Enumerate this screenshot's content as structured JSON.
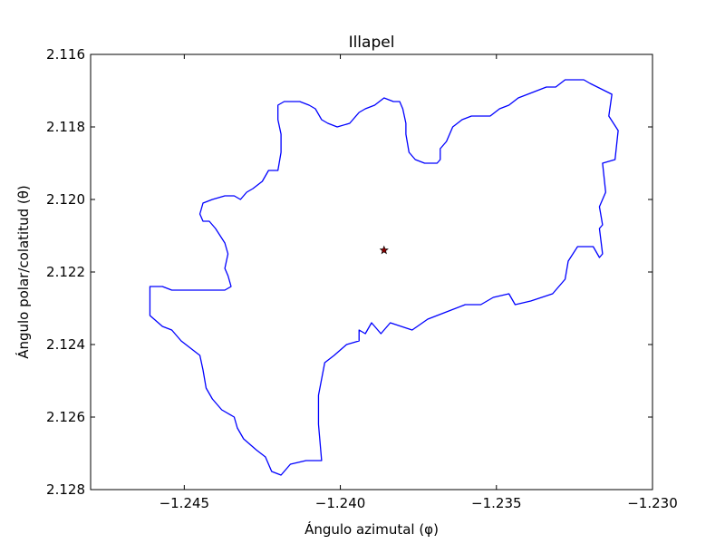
{
  "chart_data": {
    "type": "line",
    "title": "Illapel",
    "xlabel": "Ángulo azimutal (φ)",
    "ylabel": "Ángulo polar/colatitud (θ)",
    "xlim": [
      -1.248,
      -1.23
    ],
    "ylim": [
      2.128,
      2.116
    ],
    "y_axis_inverted": true,
    "grid": false,
    "x_ticks": [
      -1.245,
      -1.24,
      -1.235,
      -1.23
    ],
    "x_tick_labels": [
      "−1.245",
      "−1.240",
      "−1.235",
      "−1.230"
    ],
    "y_ticks": [
      2.116,
      2.118,
      2.12,
      2.122,
      2.124,
      2.126,
      2.128
    ],
    "y_tick_labels": [
      "2.116",
      "2.118",
      "2.120",
      "2.122",
      "2.124",
      "2.126",
      "2.128"
    ],
    "series": [
      {
        "kind": "boundary",
        "color": "#0000ff",
        "points": [
          [
            -1.232,
            2.1168
          ],
          [
            -1.2313,
            2.1171
          ],
          [
            -1.2314,
            2.1177
          ],
          [
            -1.2311,
            2.1181
          ],
          [
            -1.2312,
            2.1189
          ],
          [
            -1.2316,
            2.119
          ],
          [
            -1.2315,
            2.1198
          ],
          [
            -1.2317,
            2.1202
          ],
          [
            -1.2316,
            2.1207
          ],
          [
            -1.2317,
            2.1208
          ],
          [
            -1.2316,
            2.1215
          ],
          [
            -1.2317,
            2.1216
          ],
          [
            -1.2319,
            2.1213
          ],
          [
            -1.2324,
            2.1213
          ],
          [
            -1.2327,
            2.1217
          ],
          [
            -1.2328,
            2.1222
          ],
          [
            -1.2332,
            2.1226
          ],
          [
            -1.2339,
            2.1228
          ],
          [
            -1.2344,
            2.1229
          ],
          [
            -1.2346,
            2.1226
          ],
          [
            -1.2351,
            2.1227
          ],
          [
            -1.2355,
            2.1229
          ],
          [
            -1.236,
            2.1229
          ],
          [
            -1.2366,
            2.1231
          ],
          [
            -1.2372,
            2.1233
          ],
          [
            -1.2377,
            2.1236
          ],
          [
            -1.2384,
            2.1234
          ],
          [
            -1.2387,
            2.1237
          ],
          [
            -1.239,
            2.1234
          ],
          [
            -1.2392,
            2.1237
          ],
          [
            -1.2394,
            2.1236
          ],
          [
            -1.2394,
            2.1239
          ],
          [
            -1.2398,
            2.124
          ],
          [
            -1.2402,
            2.1243
          ],
          [
            -1.2405,
            2.1245
          ],
          [
            -1.2407,
            2.1254
          ],
          [
            -1.2407,
            2.1262
          ],
          [
            -1.2406,
            2.1272
          ],
          [
            -1.2411,
            2.1272
          ],
          [
            -1.2416,
            2.1273
          ],
          [
            -1.2419,
            2.1276
          ],
          [
            -1.2422,
            2.1275
          ],
          [
            -1.2424,
            2.1271
          ],
          [
            -1.2427,
            2.1269
          ],
          [
            -1.2431,
            2.1266
          ],
          [
            -1.2433,
            2.1263
          ],
          [
            -1.2434,
            2.126
          ],
          [
            -1.2438,
            2.1258
          ],
          [
            -1.2441,
            2.1255
          ],
          [
            -1.2443,
            2.1252
          ],
          [
            -1.2444,
            2.1247
          ],
          [
            -1.2445,
            2.1243
          ],
          [
            -1.2448,
            2.1241
          ],
          [
            -1.2451,
            2.1239
          ],
          [
            -1.2454,
            2.1236
          ],
          [
            -1.2457,
            2.1235
          ],
          [
            -1.2461,
            2.1232
          ],
          [
            -1.2461,
            2.1224
          ],
          [
            -1.2457,
            2.1224
          ],
          [
            -1.2454,
            2.1225
          ],
          [
            -1.245,
            2.1225
          ],
          [
            -1.2447,
            2.1225
          ],
          [
            -1.2443,
            2.1225
          ],
          [
            -1.244,
            2.1225
          ],
          [
            -1.2437,
            2.1225
          ],
          [
            -1.2435,
            2.1224
          ],
          [
            -1.2436,
            2.1221
          ],
          [
            -1.2437,
            2.1219
          ],
          [
            -1.2436,
            2.1215
          ],
          [
            -1.2437,
            2.1212
          ],
          [
            -1.244,
            2.1208
          ],
          [
            -1.2442,
            2.1206
          ],
          [
            -1.2444,
            2.1206
          ],
          [
            -1.2445,
            2.1204
          ],
          [
            -1.2444,
            2.1201
          ],
          [
            -1.2441,
            2.12
          ],
          [
            -1.2437,
            2.1199
          ],
          [
            -1.2434,
            2.1199
          ],
          [
            -1.2432,
            2.12
          ],
          [
            -1.243,
            2.1198
          ],
          [
            -1.2428,
            2.1197
          ],
          [
            -1.2425,
            2.1195
          ],
          [
            -1.2423,
            2.1192
          ],
          [
            -1.242,
            2.1192
          ],
          [
            -1.2419,
            2.1187
          ],
          [
            -1.2419,
            2.1182
          ],
          [
            -1.242,
            2.1178
          ],
          [
            -1.242,
            2.1174
          ],
          [
            -1.2418,
            2.1173
          ],
          [
            -1.2413,
            2.1173
          ],
          [
            -1.241,
            2.1174
          ],
          [
            -1.2408,
            2.1175
          ],
          [
            -1.2406,
            2.1178
          ],
          [
            -1.2404,
            2.1179
          ],
          [
            -1.2401,
            2.118
          ],
          [
            -1.2397,
            2.1179
          ],
          [
            -1.2394,
            2.1176
          ],
          [
            -1.2392,
            2.1175
          ],
          [
            -1.2389,
            2.1174
          ],
          [
            -1.2386,
            2.1172
          ],
          [
            -1.2383,
            2.1173
          ],
          [
            -1.2381,
            2.1173
          ],
          [
            -1.238,
            2.1175
          ],
          [
            -1.2379,
            2.1179
          ],
          [
            -1.2379,
            2.1182
          ],
          [
            -1.2378,
            2.1187
          ],
          [
            -1.2376,
            2.1189
          ],
          [
            -1.2373,
            2.119
          ],
          [
            -1.2371,
            2.119
          ],
          [
            -1.2369,
            2.119
          ],
          [
            -1.2368,
            2.1189
          ],
          [
            -1.2368,
            2.1186
          ],
          [
            -1.2366,
            2.1184
          ],
          [
            -1.2365,
            2.1182
          ],
          [
            -1.2364,
            2.118
          ],
          [
            -1.2361,
            2.1178
          ],
          [
            -1.2358,
            2.1177
          ],
          [
            -1.2355,
            2.1177
          ],
          [
            -1.2352,
            2.1177
          ],
          [
            -1.2349,
            2.1175
          ],
          [
            -1.2346,
            2.1174
          ],
          [
            -1.2343,
            2.1172
          ],
          [
            -1.234,
            2.1171
          ],
          [
            -1.2337,
            2.117
          ],
          [
            -1.2334,
            2.1169
          ],
          [
            -1.2331,
            2.1169
          ],
          [
            -1.2328,
            2.1167
          ],
          [
            -1.2325,
            2.1167
          ],
          [
            -1.2322,
            2.1167
          ],
          [
            -1.232,
            2.1168
          ]
        ]
      },
      {
        "kind": "marker",
        "marker": "star",
        "color": "#8b0000",
        "points": [
          [
            -1.2386,
            2.1214
          ]
        ]
      }
    ]
  }
}
